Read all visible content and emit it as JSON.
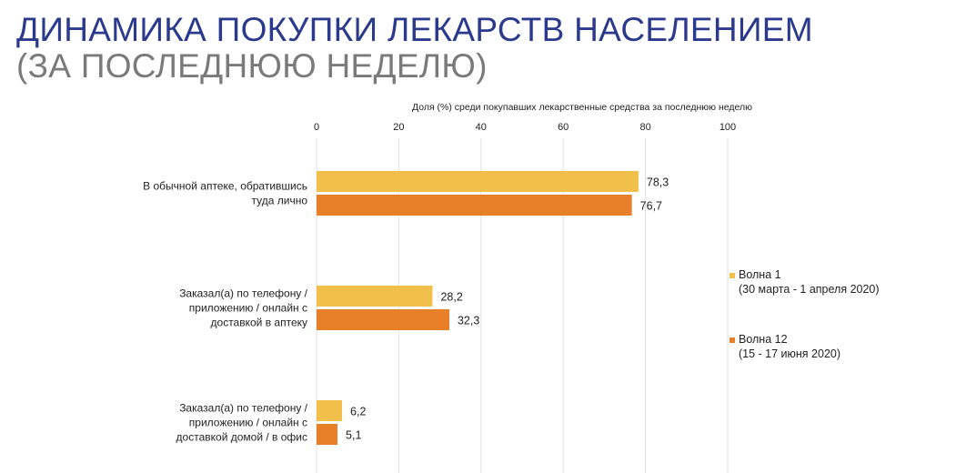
{
  "title": "ДИНАМИКА ПОКУПКИ ЛЕКАРСТВ НАСЕЛЕНИЕМ",
  "subtitle": "(ЗА ПОСЛЕДНЮЮ НЕДЕЛЮ)",
  "chart_data": {
    "type": "bar",
    "orientation": "horizontal",
    "xlabel": "Доля (%) среди покупавших лекарственные средства за последнюю неделю",
    "xlim": [
      0,
      100
    ],
    "ticks": [
      "0",
      "20",
      "40",
      "60",
      "80",
      "100"
    ],
    "grid": true,
    "legend_position": "right",
    "categories": [
      [
        "В обычной аптеке, обратившись",
        "туда лично"
      ],
      [
        "Заказал(а) по телефону /",
        "приложению / онлайн с",
        "доставкой в аптеку"
      ],
      [
        "Заказал(а) по телефону /",
        "приложению / онлайн с",
        "доставкой домой / в офис"
      ]
    ],
    "series": [
      {
        "name": "Волна 1",
        "period": "(30 марта - 1 апреля 2020)",
        "color": "#f0c04a",
        "values": [
          78.3,
          28.2,
          6.2
        ],
        "labels": [
          "78,3",
          "28,2",
          "6,2"
        ]
      },
      {
        "name": "Волна 12",
        "period": "(15 - 17 июня 2020)",
        "color": "#e8802a",
        "values": [
          76.7,
          32.3,
          5.1
        ],
        "labels": [
          "76,7",
          "32,3",
          "5,1"
        ]
      }
    ]
  }
}
